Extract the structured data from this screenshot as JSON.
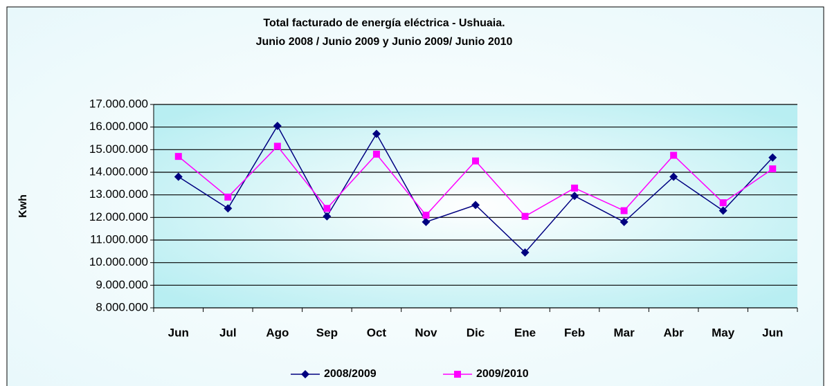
{
  "chart_data": {
    "type": "line",
    "title": "Total facturado de energía eléctrica - Ushuaia.",
    "subtitle": "Junio 2008 / Junio 2009 y Junio 2009/ Junio 2010",
    "ylabel": "Kwh",
    "categories": [
      "Jun",
      "Jul",
      "Ago",
      "Sep",
      "Oct",
      "Nov",
      "Dic",
      "Ene",
      "Feb",
      "Mar",
      "Abr",
      "May",
      "Jun"
    ],
    "series": [
      {
        "name": "2008/2009",
        "color": "#000080",
        "marker": "diamond",
        "values": [
          13800000,
          12400000,
          16050000,
          12050000,
          15700000,
          11800000,
          12550000,
          10450000,
          12950000,
          11800000,
          13800000,
          12300000,
          14650000
        ]
      },
      {
        "name": "2009/2010",
        "color": "#ff00ff",
        "marker": "square",
        "values": [
          14700000,
          12900000,
          15150000,
          12400000,
          14800000,
          12100000,
          14500000,
          12050000,
          13300000,
          12300000,
          14750000,
          12650000,
          14150000
        ]
      }
    ],
    "ylim": [
      8000000,
      17000000
    ],
    "yticks": [
      {
        "value": 8000000,
        "label": "8.000.000"
      },
      {
        "value": 9000000,
        "label": "9.000.000"
      },
      {
        "value": 10000000,
        "label": "10.000.000"
      },
      {
        "value": 11000000,
        "label": "11.000.000"
      },
      {
        "value": 12000000,
        "label": "12.000.000"
      },
      {
        "value": 13000000,
        "label": "13.000.000"
      },
      {
        "value": 14000000,
        "label": "14.000.000"
      },
      {
        "value": 15000000,
        "label": "15.000.000"
      },
      {
        "value": 16000000,
        "label": "16.000.000"
      },
      {
        "value": 17000000,
        "label": "17.000.000"
      }
    ],
    "grid": true,
    "legend": "bottom"
  }
}
